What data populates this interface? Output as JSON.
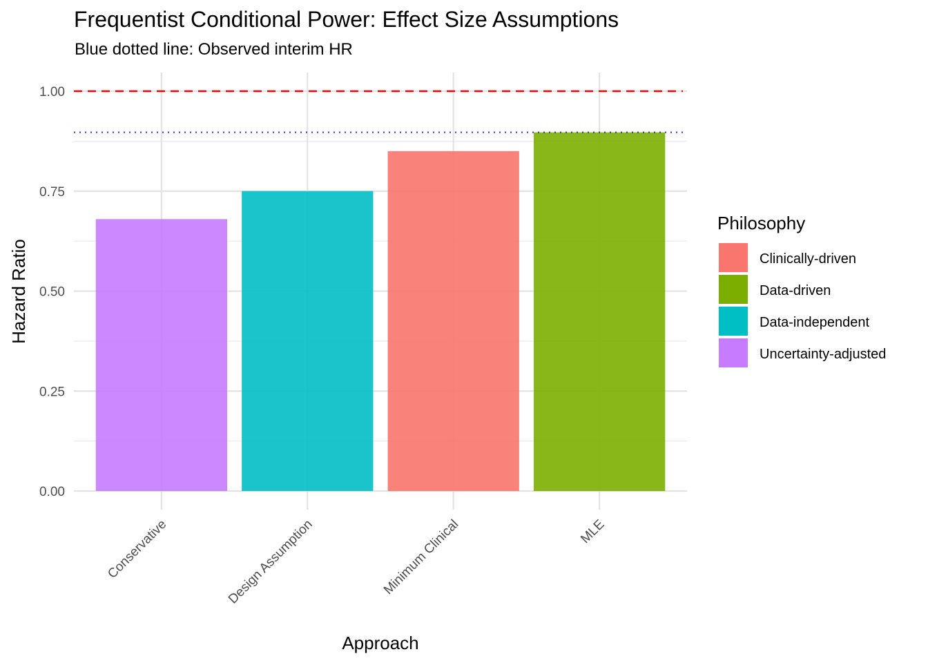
{
  "chart_data": {
    "type": "bar",
    "title": "Frequentist Conditional Power: Effect Size Assumptions",
    "subtitle": "Blue dotted line: Observed interim HR",
    "xlabel": "Approach",
    "ylabel": "Hazard Ratio",
    "categories": [
      "Conservative",
      "Design Assumption",
      "Minimum Clinical",
      "MLE"
    ],
    "values": [
      0.68,
      0.75,
      0.85,
      0.897
    ],
    "philosophy": [
      "Uncertainty-adjusted",
      "Data-independent",
      "Clinically-driven",
      "Data-driven"
    ],
    "ylim": [
      0,
      1.0
    ],
    "yticks": [
      0.0,
      0.25,
      0.5,
      0.75,
      1.0
    ],
    "ytick_labels": [
      "0.00",
      "0.25",
      "0.50",
      "0.75",
      "1.00"
    ],
    "reference_lines": [
      {
        "value": 1.0,
        "color": "#ff0000",
        "style": "dashed"
      },
      {
        "value": 0.897,
        "color": "#0000ff",
        "style": "dotted"
      }
    ],
    "legend": {
      "title": "Philosophy",
      "placement": "right",
      "entries": [
        {
          "label": "Clinically-driven",
          "color": "#F8766D"
        },
        {
          "label": "Data-driven",
          "color": "#7CAE00"
        },
        {
          "label": "Data-independent",
          "color": "#00BFC4"
        },
        {
          "label": "Uncertainty-adjusted",
          "color": "#C77CFF"
        }
      ]
    },
    "grid": true
  }
}
